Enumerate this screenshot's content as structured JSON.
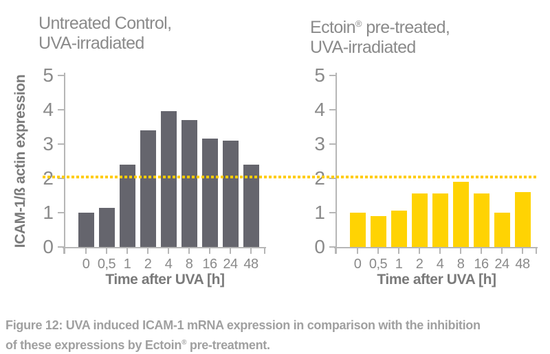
{
  "charts": {
    "left": {
      "title_line1": "Untreated Control,",
      "title_line2": "UVA-irradiated",
      "ylabel": "ICAM-1/ß actin expression",
      "xlabel": "Time after UVA [h]"
    },
    "right": {
      "title_part1": "Ectoin",
      "title_reg": "®",
      "title_part2": " pre-treated,",
      "title_line2": "UVA-irradiated",
      "xlabel": "Time after UVA [h]"
    }
  },
  "caption": {
    "line1": "Figure 12: UVA induced ICAM-1 mRNA expression in comparison with the inhibition",
    "line2_pre": "of these expressions by Ectoin",
    "reg": "®",
    "line2_post": " pre-treatment."
  },
  "colors": {
    "bar_gray": "#65656D",
    "bar_yellow": "#FFD303",
    "reference_line": "#FFCC00",
    "axis": "#B6B6B6",
    "tick_text": "#8A8A8A",
    "title_text": "#8A8A8A",
    "axis_title_text": "#7A7A7A",
    "caption_text": "#A0A0A0"
  },
  "chart_data": [
    {
      "type": "bar",
      "title": "Untreated Control, UVA-irradiated",
      "categories": [
        "0",
        "0,5",
        "1",
        "2",
        "4",
        "8",
        "16",
        "24",
        "48"
      ],
      "values": [
        1.0,
        1.15,
        2.4,
        3.4,
        3.95,
        3.7,
        3.15,
        3.1,
        2.4
      ],
      "xlabel": "Time after UVA [h]",
      "ylabel": "ICAM-1/ß actin expression",
      "ylim": [
        0,
        5
      ],
      "yticks": [
        0,
        1,
        2,
        3,
        4,
        5
      ],
      "bar_color": "#65656D",
      "reference_line_y": 2.05,
      "reference_line_color": "#FFCC00",
      "grid": false,
      "legend": "none"
    },
    {
      "type": "bar",
      "title": "Ectoin® pre-treated, UVA-irradiated",
      "categories": [
        "0",
        "0,5",
        "1",
        "2",
        "4",
        "8",
        "16",
        "24",
        "48"
      ],
      "values": [
        1.0,
        0.9,
        1.05,
        1.55,
        1.55,
        1.9,
        1.55,
        1.0,
        1.6
      ],
      "xlabel": "Time after UVA [h]",
      "ylabel": "",
      "ylim": [
        0,
        5
      ],
      "yticks": [
        0,
        1,
        2,
        3,
        4,
        5
      ],
      "bar_color": "#FFD303",
      "reference_line_y": 2.05,
      "reference_line_color": "#FFCC00",
      "grid": false,
      "legend": "none"
    }
  ]
}
